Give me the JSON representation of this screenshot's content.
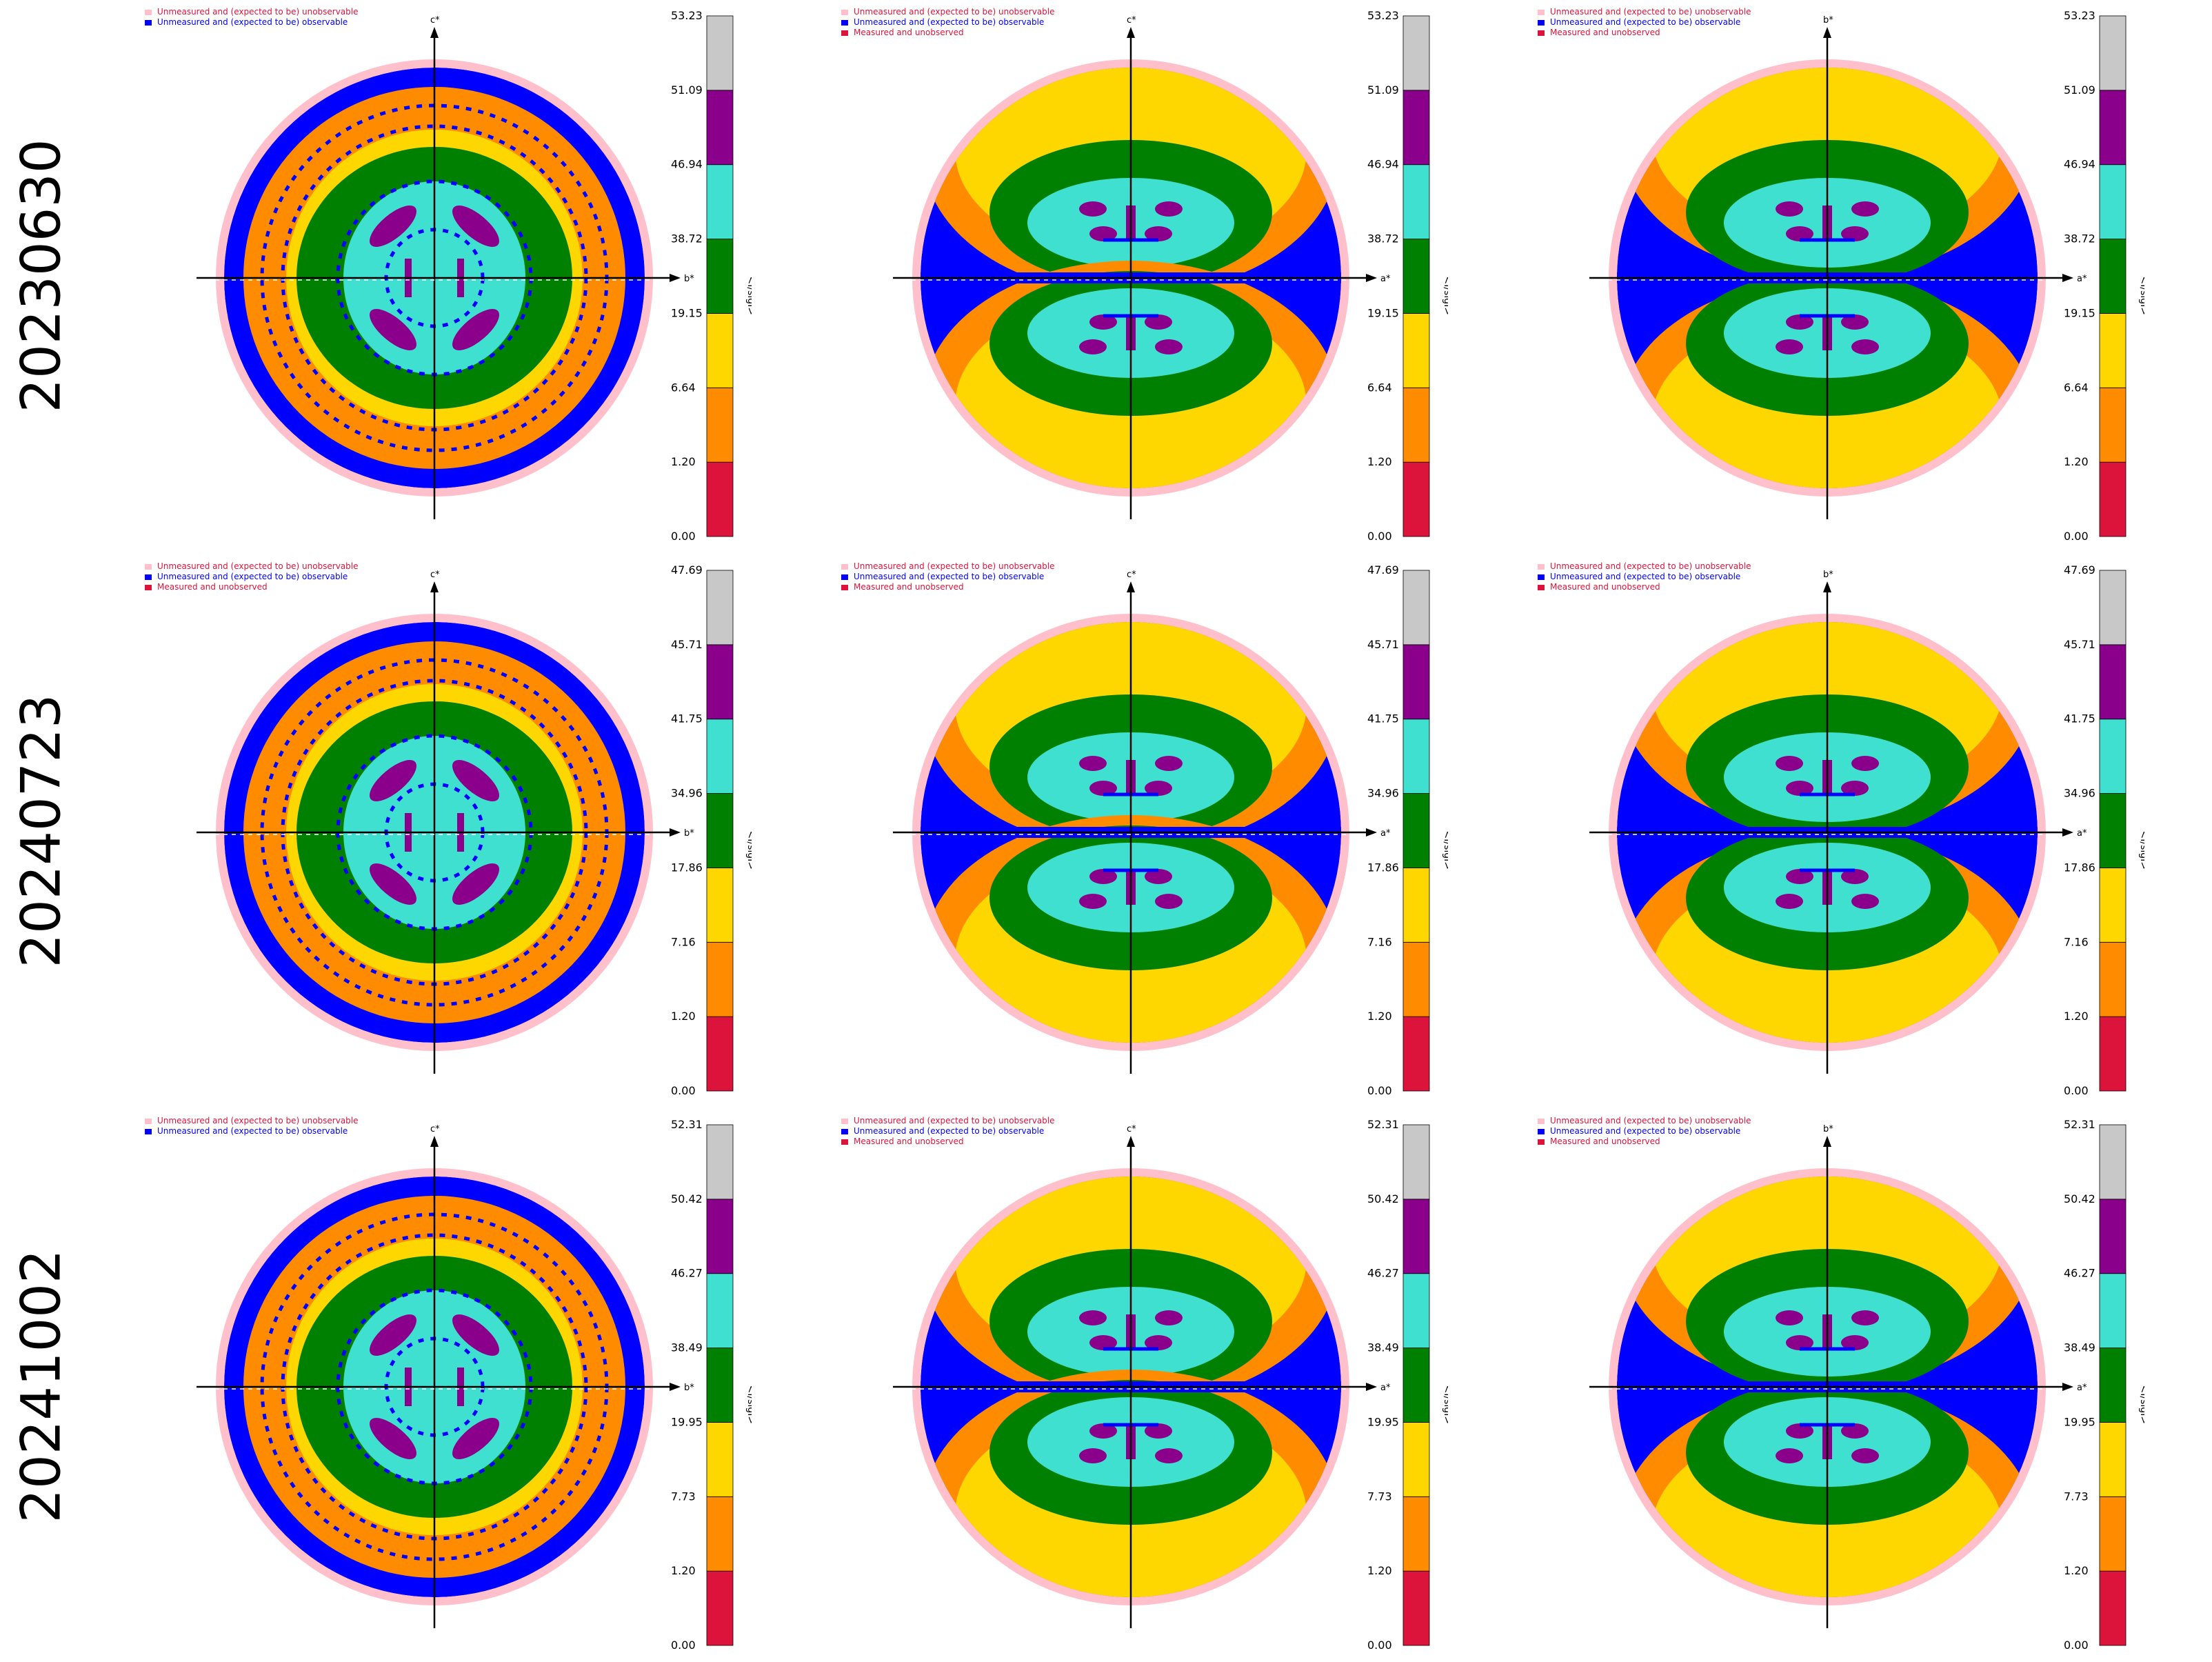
{
  "colors": {
    "band_colors": [
      "#dc143c",
      "#ff8c00",
      "#ffd700",
      "#008000",
      "#40e0d0",
      "#8b008b",
      "#c8c8c8"
    ],
    "observable_blue": "#0000ff",
    "unobservable_pink": "#ffc0cb",
    "measured_unobserved_red": "#dc143c"
  },
  "legend_labels": {
    "unobservable": "Unmeasured and (expected to be) unobservable",
    "observable": "Unmeasured and (expected to be) observable",
    "measured_unobserved": "Measured and unobserved"
  },
  "colorbar_title": "<I/sigI>",
  "rows": [
    {
      "date": "20230630",
      "panels": [
        {
          "h": "b*",
          "v": "c*",
          "legend": [
            "unobservable",
            "observable"
          ]
        },
        {
          "h": "a*",
          "v": "c*",
          "legend": [
            "unobservable",
            "observable",
            "measured_unobserved"
          ]
        },
        {
          "h": "a*",
          "v": "b*",
          "legend": [
            "unobservable",
            "observable",
            "measured_unobserved"
          ]
        }
      ],
      "colorbar_ticks": [
        "0.00",
        "1.20",
        "6.64",
        "19.15",
        "38.72",
        "46.94",
        "51.09",
        "53.23"
      ]
    },
    {
      "date": "20240723",
      "panels": [
        {
          "h": "b*",
          "v": "c*",
          "legend": [
            "unobservable",
            "observable",
            "measured_unobserved"
          ]
        },
        {
          "h": "a*",
          "v": "c*",
          "legend": [
            "unobservable",
            "observable",
            "measured_unobserved"
          ]
        },
        {
          "h": "a*",
          "v": "b*",
          "legend": [
            "unobservable",
            "observable",
            "measured_unobserved"
          ]
        }
      ],
      "colorbar_ticks": [
        "0.00",
        "1.20",
        "7.16",
        "17.86",
        "34.96",
        "41.75",
        "45.71",
        "47.69"
      ]
    },
    {
      "date": "20241002",
      "panels": [
        {
          "h": "b*",
          "v": "c*",
          "legend": [
            "unobservable",
            "observable"
          ]
        },
        {
          "h": "a*",
          "v": "c*",
          "legend": [
            "unobservable",
            "observable",
            "measured_unobserved"
          ]
        },
        {
          "h": "a*",
          "v": "b*",
          "legend": [
            "unobservable",
            "observable",
            "measured_unobserved"
          ]
        }
      ],
      "colorbar_ticks": [
        "0.00",
        "1.20",
        "7.73",
        "19.95",
        "38.49",
        "46.27",
        "50.42",
        "52.31"
      ]
    }
  ],
  "chart_data": {
    "type": "heatmap",
    "description_axes": "reciprocal-space slices",
    "colorbar_label": "<I/sigI>",
    "slices": [
      {
        "date": "20230630",
        "slice_axes": [
          [
            "b*",
            "c*"
          ],
          [
            "a*",
            "c*"
          ],
          [
            "a*",
            "b*"
          ]
        ],
        "bin_edges": [
          0.0,
          1.2,
          6.64,
          19.15,
          38.72,
          46.94,
          51.09,
          53.23
        ]
      },
      {
        "date": "20240723",
        "slice_axes": [
          [
            "b*",
            "c*"
          ],
          [
            "a*",
            "c*"
          ],
          [
            "a*",
            "b*"
          ]
        ],
        "bin_edges": [
          0.0,
          1.2,
          7.16,
          17.86,
          34.96,
          41.75,
          45.71,
          47.69
        ]
      },
      {
        "date": "20241002",
        "slice_axes": [
          [
            "b*",
            "c*"
          ],
          [
            "a*",
            "c*"
          ],
          [
            "a*",
            "b*"
          ]
        ],
        "bin_edges": [
          0.0,
          1.2,
          7.73,
          19.95,
          38.49,
          46.27,
          50.42,
          52.31
        ]
      }
    ]
  }
}
